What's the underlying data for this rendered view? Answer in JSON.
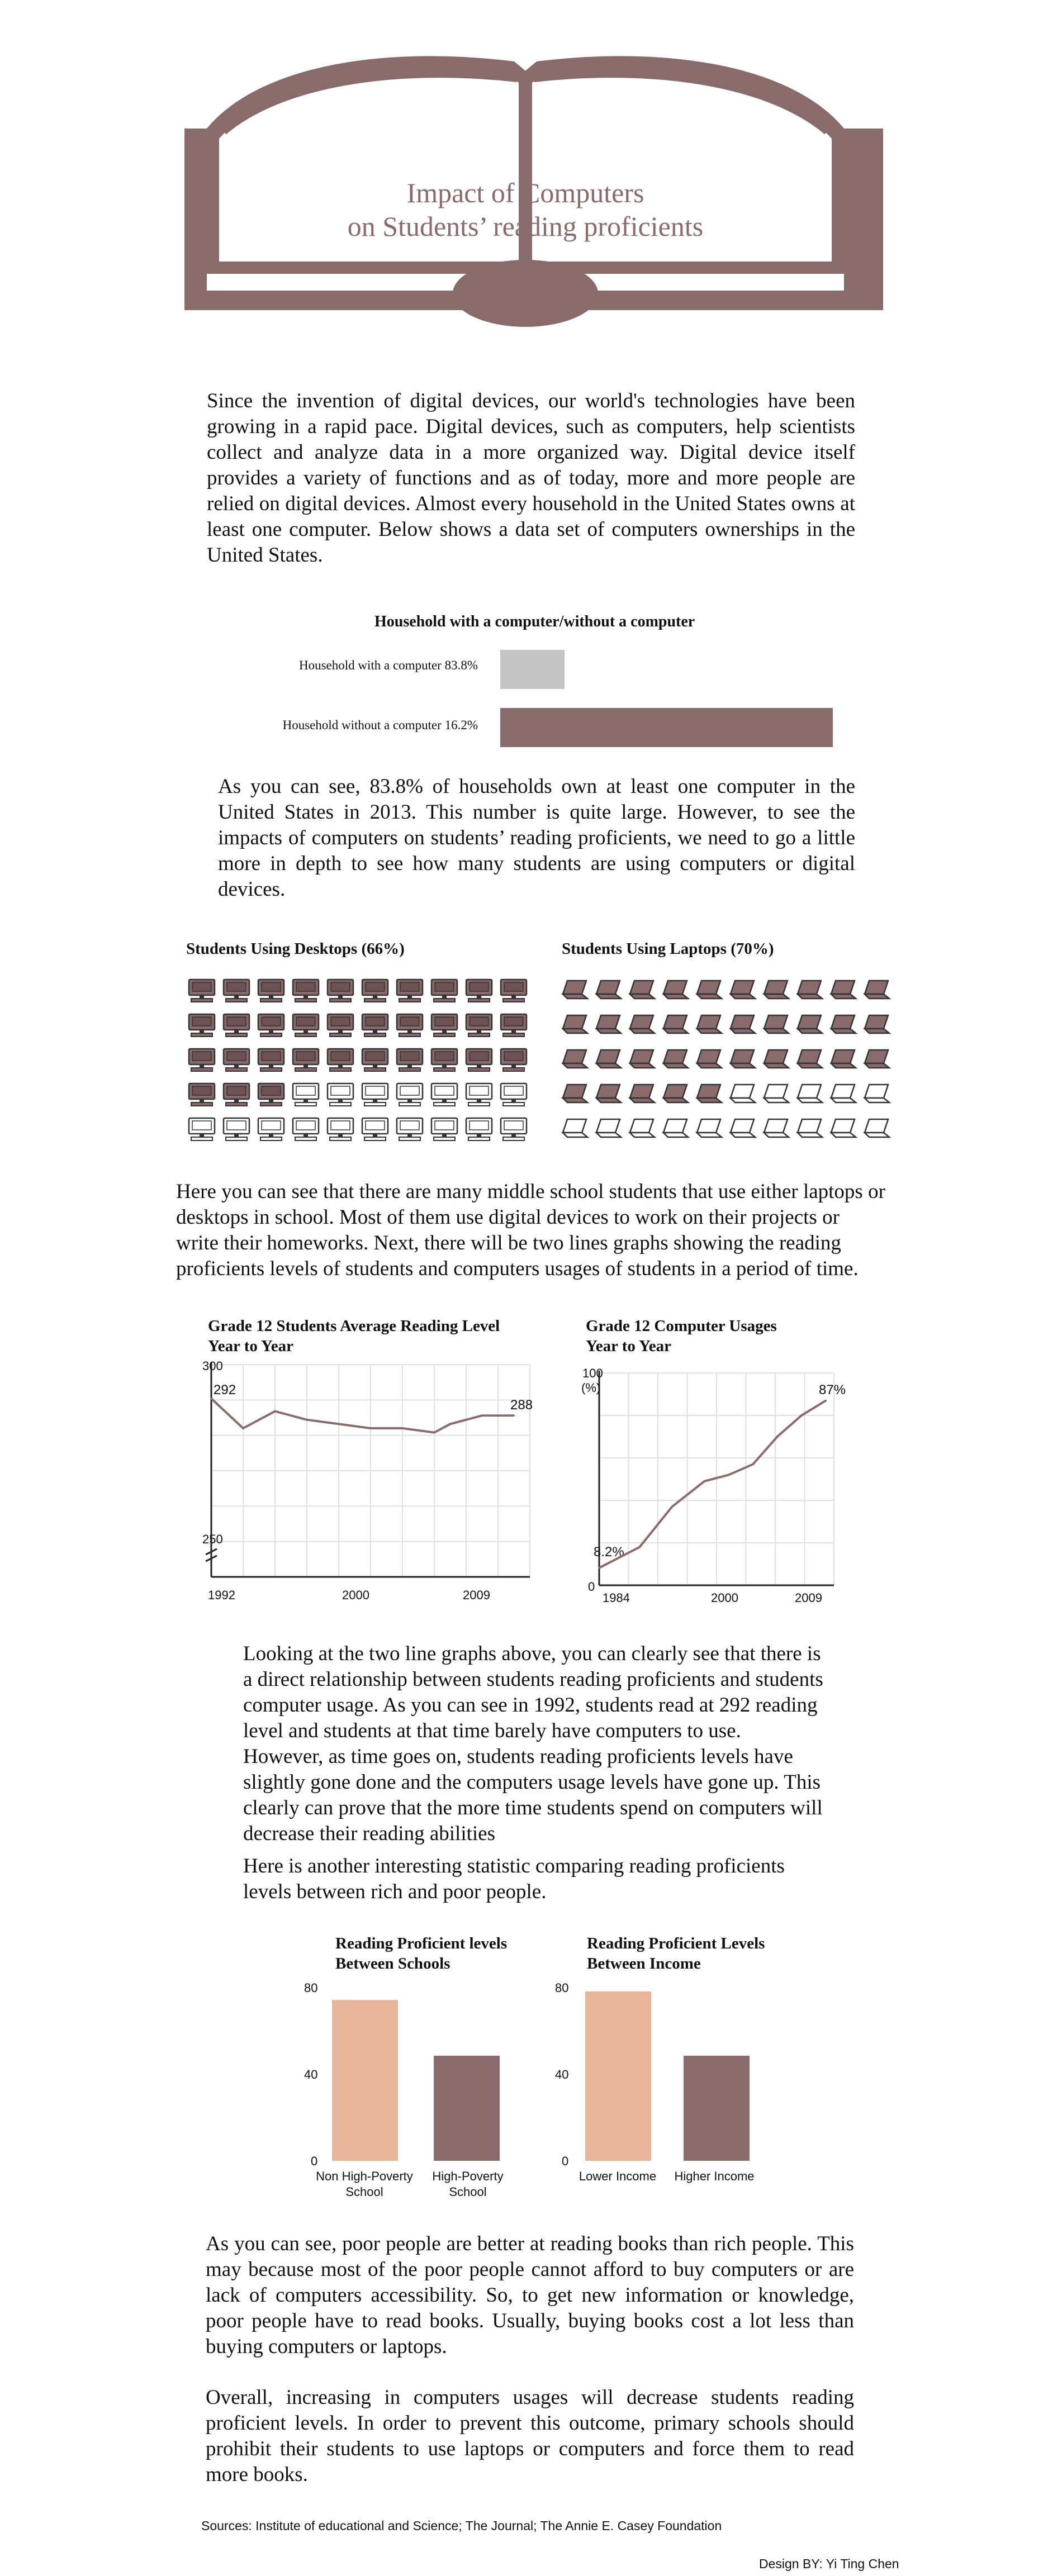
{
  "header": {
    "title_line1": "Impact of Computers",
    "title_line2": "on Students’ reading proficients"
  },
  "intro_paragraph": "Since the invention of digital devices, our world's technologies have been growing in a rapid pace. Digital devices, such as computers, help scientists collect and analyze data in a more organized way. Digital device itself provides a variety of functions and as of today, more and more people are relied on digital devices. Almost every household in the United States owns at least one computer. Below shows a data set of computers ownerships in the United States.",
  "household_chart": {
    "title": "Household with a computer/without a computer",
    "rows": [
      {
        "label": "Household with a computer  83.8%"
      },
      {
        "label": "Household without a computer  16.2%"
      }
    ]
  },
  "paragraph_2": "As you can see, 83.8% of households own at least one computer in the United States in 2013. This number is quite large. However, to see the impacts of computers on students’ reading proficients, we need to go a little more in depth to see how many students are using computers or digital devices.",
  "desktops_chart": {
    "title": "Students Using Desktops (66%)",
    "percent": 66
  },
  "laptops_chart": {
    "title": "Students Using Laptops (70%)",
    "percent": 70
  },
  "paragraph_3": "Here you can see that there are many middle school students that use either laptops or desktops in school. Most of them use digital devices to work on their projects or write their homeworks. Next, there will be two lines graphs showing the reading proficients levels of students and computers usages of students in a period of time.",
  "reading_line_chart": {
    "title_line1": "Grade 12 Students Average Reading Level",
    "title_line2": "Year to Year",
    "y_top": "300",
    "y_bottom": "250",
    "start_label": "292",
    "end_label": "288",
    "x_ticks": [
      "1992",
      "2000",
      "2009"
    ]
  },
  "usage_line_chart": {
    "title_line1": "Grade 12 Computer Usages",
    "title_line2": "Year to Year",
    "y_top": "100",
    "y_unit": "(%)",
    "y_bottom": "0",
    "start_label": "8.2%",
    "end_label": "87%",
    "x_ticks": [
      "1984",
      "2000",
      "2009"
    ]
  },
  "paragraph_4a": "Looking at the two line graphs above, you can clearly see that there is a direct relationship between students reading proficients and students computer usage. As you can see in 1992, students read at 292 reading level and students at that time barely have computers to use. However, as time goes on, students reading proficients levels have slightly gone done and the computers usage levels have gone up. This clearly can prove that the more time students spend on computers will decrease their reading abilities",
  "paragraph_4b": "Here is another interesting statistic comparing reading proficients levels between rich and poor people.",
  "schools_bar_chart": {
    "title_line1": "Reading Proficient levels",
    "title_line2": "Between Schools",
    "y_ticks": [
      "80",
      "40",
      "0"
    ],
    "categories": [
      "Non High-Poverty School",
      "High-Poverty School"
    ],
    "cat1_line1": "Non High-Poverty",
    "cat1_line2": "School",
    "cat2_line1": "High-Poverty",
    "cat2_line2": "School"
  },
  "income_bar_chart": {
    "title_line1": "Reading Proficient Levels",
    "title_line2": "Between Income",
    "y_ticks": [
      "80",
      "40",
      "0"
    ],
    "categories": [
      "Lower Income",
      "Higher Income"
    ]
  },
  "paragraph_5": "As you can see, poor people are better at reading books than rich people. This may because most of the poor people cannot afford to buy computers or are lack of computers accessibility. So, to get new information or knowledge, poor people have to read books. Usually, buying books cost a lot less than buying computers or laptops.",
  "paragraph_6": "Overall, increasing in computers usages will decrease students reading proficient levels. In order to prevent this outcome, primary schools should prohibit their students to use laptops or computers and force them to read more books.",
  "footer": {
    "sources": "Sources: Institute of educational and Science; The Journal; The Annie E. Casey Foundation",
    "credit": "Design BY: Yi Ting Chen"
  },
  "colors": {
    "accent": "#8a6b6c",
    "light_gray": "#c4c4c4",
    "peach": "#e8b59b",
    "grid": "#e0e0e0"
  },
  "chart_data": [
    {
      "type": "bar",
      "title": "Household with a computer/without a computer",
      "categories": [
        "Household with a computer",
        "Household without a computer"
      ],
      "values": [
        83.8,
        16.2
      ],
      "orientation": "horizontal"
    },
    {
      "type": "line",
      "title": "Grade 12 Students Average Reading Level Year to Year",
      "x": [
        1992,
        1994,
        1996,
        1998,
        2000,
        2002,
        2004,
        2006,
        2007,
        2009,
        2011
      ],
      "values": [
        292,
        285,
        289,
        287,
        286,
        285,
        285,
        284,
        286,
        288,
        288
      ],
      "ylim": [
        250,
        300
      ]
    },
    {
      "type": "line",
      "title": "Grade 12 Computer Usages Year to Year",
      "x": [
        1984,
        1989,
        1993,
        1997,
        2000,
        2003,
        2006,
        2009,
        2012
      ],
      "values": [
        8.2,
        18,
        37,
        49,
        52,
        57,
        70,
        80,
        87
      ],
      "ylim": [
        0,
        100
      ]
    },
    {
      "type": "bar",
      "title": "Reading Proficient levels Between Schools",
      "categories": [
        "Non High-Poverty School",
        "High-Poverty School"
      ],
      "values": [
        75,
        49
      ],
      "ylim": [
        0,
        80
      ]
    },
    {
      "type": "bar",
      "title": "Reading Proficient Levels Between Income",
      "categories": [
        "Lower Income",
        "Higher Income"
      ],
      "values": [
        79,
        49
      ],
      "ylim": [
        0,
        80
      ]
    }
  ]
}
